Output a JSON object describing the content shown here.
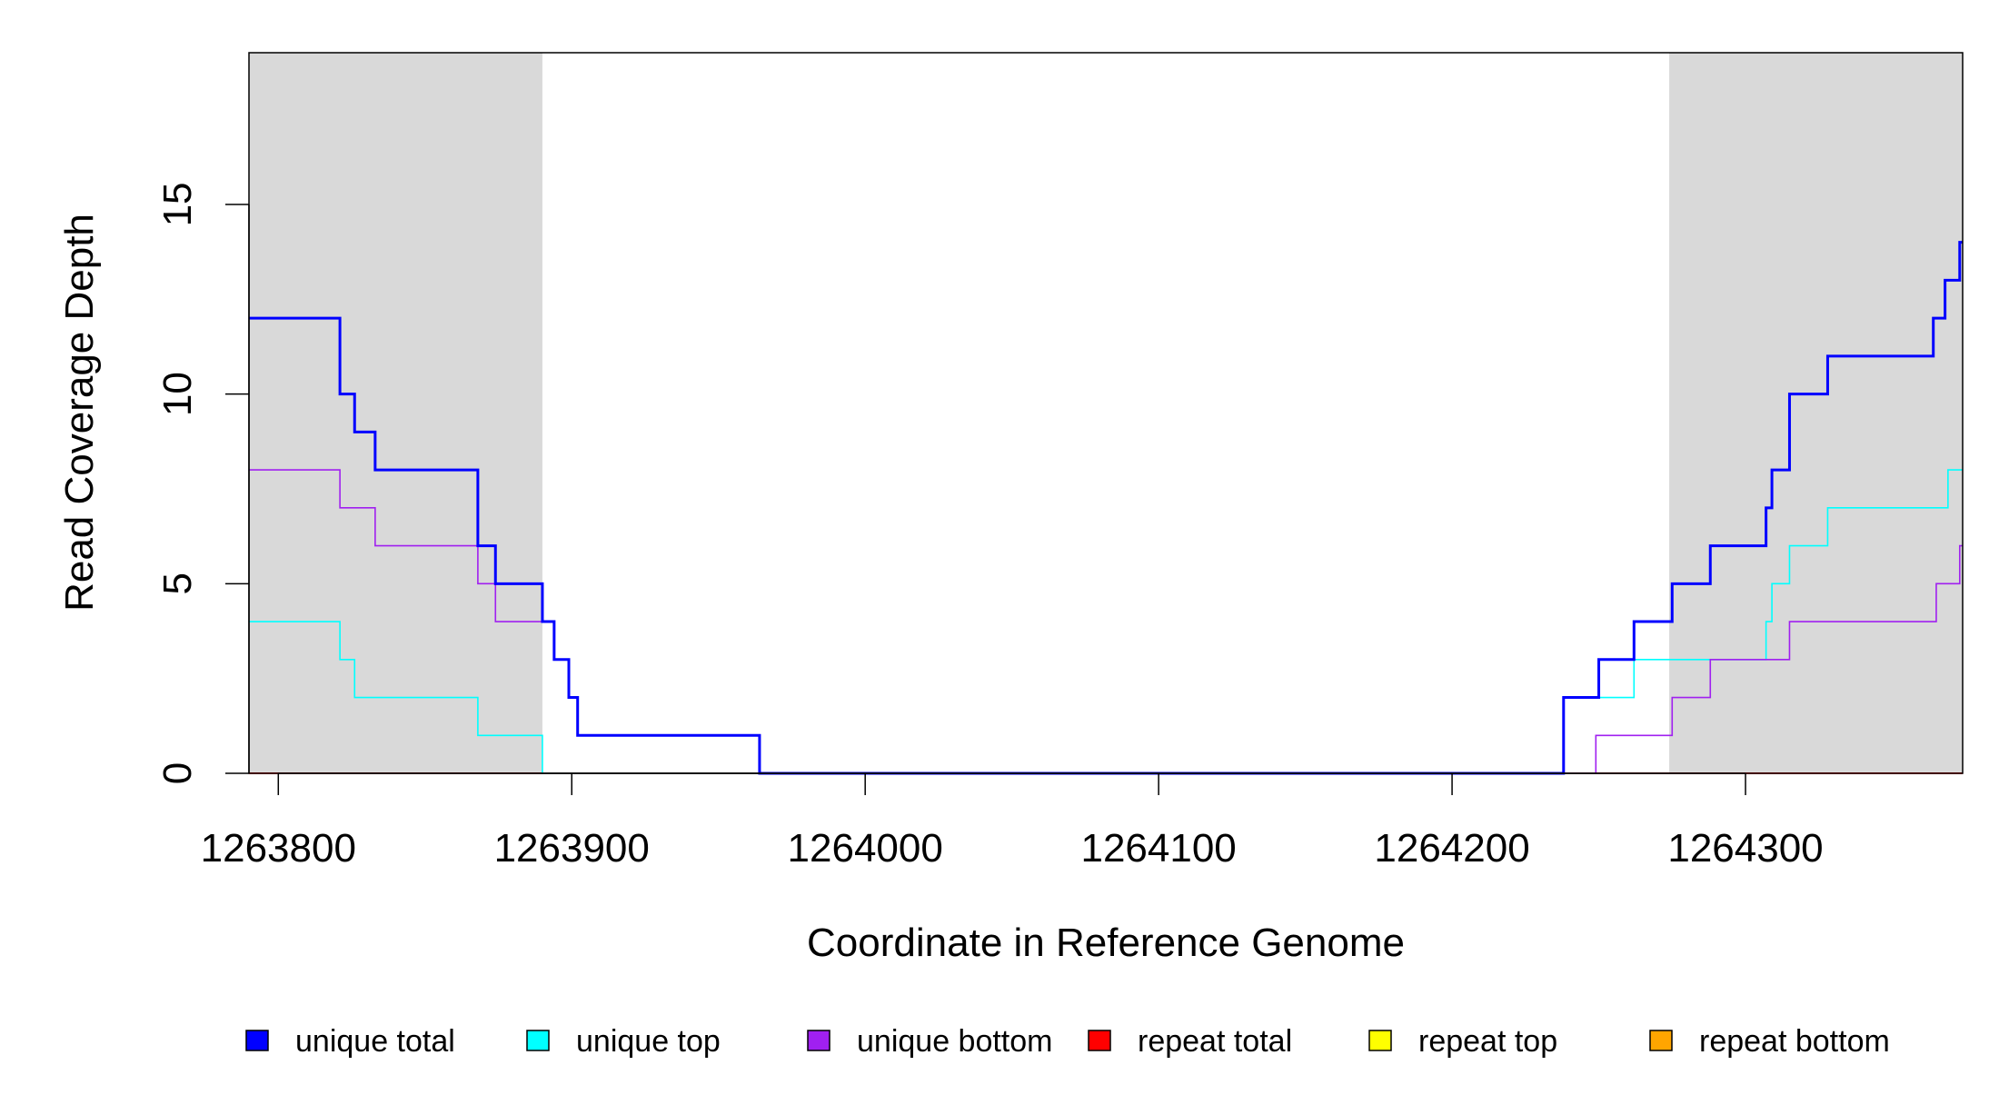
{
  "chart_data": {
    "type": "line",
    "title": "",
    "xlabel": "Coordinate in Reference Genome",
    "ylabel": "Read Coverage Depth",
    "xlim": [
      1263790,
      1264374
    ],
    "ylim": [
      0,
      19
    ],
    "x_ticks": [
      1263800,
      1263900,
      1264000,
      1264100,
      1264200,
      1264300
    ],
    "x_tick_labels": [
      "1263800",
      "1263900",
      "1264000",
      "1264100",
      "1264200",
      "1264300"
    ],
    "y_ticks": [
      0,
      5,
      10,
      15
    ],
    "y_tick_labels": [
      "0",
      "5",
      "10",
      "15"
    ],
    "grid": false,
    "step": true,
    "shaded_regions": [
      {
        "x0": 1263790,
        "x1": 1263890,
        "color": "#d9d9d9"
      },
      {
        "x0": 1264274,
        "x1": 1264374,
        "color": "#d9d9d9"
      }
    ],
    "legend_position": "bottom",
    "series": [
      {
        "name": "unique total",
        "color": "#0000ff",
        "x": [
          1263790,
          1263821,
          1263826,
          1263833,
          1263868,
          1263874,
          1263890,
          1263894,
          1263899,
          1263902,
          1263964,
          1264238,
          1264250,
          1264262,
          1264275,
          1264288,
          1264307,
          1264309,
          1264315,
          1264328,
          1264364,
          1264368,
          1264373,
          1264374
        ],
        "y": [
          12,
          10,
          9,
          8,
          6,
          5,
          4,
          3,
          2,
          1,
          0,
          2,
          3,
          4,
          5,
          6,
          7,
          8,
          10,
          11,
          12,
          13,
          14,
          14
        ]
      },
      {
        "name": "unique top",
        "color": "#00ffff",
        "x": [
          1263790,
          1263821,
          1263826,
          1263868,
          1263890,
          1264238,
          1264262,
          1264307,
          1264309,
          1264315,
          1264328,
          1264369,
          1264374
        ],
        "y": [
          4,
          3,
          2,
          1,
          0,
          2,
          3,
          4,
          5,
          6,
          7,
          8,
          8
        ]
      },
      {
        "name": "unique bottom",
        "color": "#a020f0",
        "x": [
          1263790,
          1263821,
          1263833,
          1263868,
          1263874,
          1263890,
          1263894,
          1263899,
          1263902,
          1263964,
          1264249,
          1264275,
          1264288,
          1264315,
          1264365,
          1264373,
          1264374
        ],
        "y": [
          8,
          7,
          6,
          5,
          4,
          4,
          3,
          2,
          1,
          0,
          1,
          2,
          3,
          4,
          5,
          6,
          6
        ]
      },
      {
        "name": "repeat total",
        "color": "#ff0000",
        "x": [
          1263790,
          1264374
        ],
        "y": [
          0,
          0
        ]
      },
      {
        "name": "repeat top",
        "color": "#ffff00",
        "x": [
          1263790,
          1264374
        ],
        "y": [
          0,
          0
        ]
      },
      {
        "name": "repeat bottom",
        "color": "#ffa500",
        "x": [
          1263790,
          1264374
        ],
        "y": [
          0,
          0
        ]
      }
    ]
  }
}
